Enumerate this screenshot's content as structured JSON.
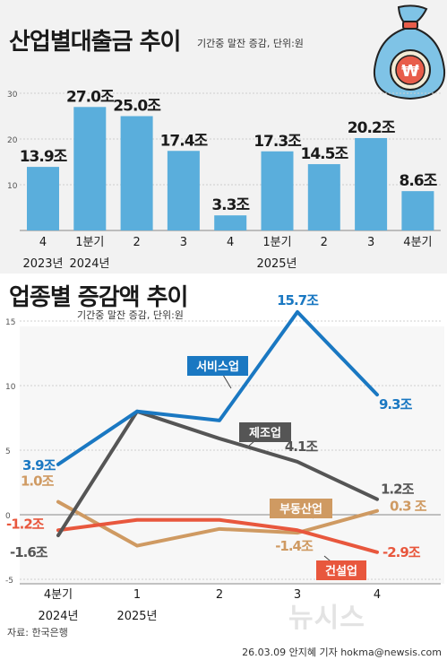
{
  "title_top": "산업별대출금 추이",
  "subtitle_top": "기간중 말잔 증감, 단위:원",
  "title_bottom": "업종별 증감액 추이",
  "subtitle_bottom": "기간중 말잔 증감, 단위:원",
  "source": "자료: 한국은행",
  "credit": "26.03.09 안지혜 기자 hokma@newsis.com",
  "watermark": "뉴시스",
  "icon": "money-bag-won-icon",
  "chart_data": [
    {
      "type": "bar",
      "categories": [
        "4",
        "1분기",
        "2",
        "3",
        "4",
        "1분기",
        "2",
        "3",
        "4분기"
      ],
      "year_labels": [
        "2023년",
        "2024년",
        "2025년"
      ],
      "values": [
        13.9,
        27.0,
        25.0,
        17.4,
        3.3,
        17.3,
        14.5,
        20.2,
        8.6
      ],
      "labels": [
        "13.9조",
        "27.0조",
        "25.0조",
        "17.4조",
        "3.3조",
        "17.3조",
        "14.5조",
        "20.2조",
        "8.6조"
      ],
      "y_ticks": [
        10,
        20,
        30
      ],
      "ylim": [
        0,
        30
      ],
      "color": "#5aaedc"
    },
    {
      "type": "line",
      "x": [
        "4분기",
        "1",
        "2",
        "3",
        "4"
      ],
      "year_labels": [
        "2024년",
        "2025년"
      ],
      "y_ticks": [
        "-5",
        "0",
        "5",
        "10",
        "15"
      ],
      "ylim": [
        -5,
        16
      ],
      "series": [
        {
          "name": "서비스업",
          "values": [
            3.9,
            8.0,
            7.3,
            15.7,
            9.3
          ],
          "color": "#1a78c2",
          "labels": [
            "3.9조",
            "",
            "",
            "15.7조",
            "9.3조"
          ]
        },
        {
          "name": "제조업",
          "values": [
            -1.6,
            8.0,
            5.9,
            4.1,
            1.2
          ],
          "color": "#555555",
          "labels": [
            "-1.6조",
            "",
            "",
            "4.1조",
            "1.2조"
          ]
        },
        {
          "name": "부동산업",
          "values": [
            1.0,
            -2.4,
            -1.1,
            -1.4,
            0.3
          ],
          "color": "#cf9a62",
          "labels": [
            "1.0조",
            "",
            "",
            "-1.4조",
            "0.3 조"
          ]
        },
        {
          "name": "건설업",
          "values": [
            -1.2,
            -0.4,
            -0.4,
            -1.2,
            -2.9
          ],
          "color": "#e8573d",
          "labels": [
            "-1.2조",
            "",
            "",
            "",
            "-2.9조"
          ]
        }
      ]
    }
  ]
}
